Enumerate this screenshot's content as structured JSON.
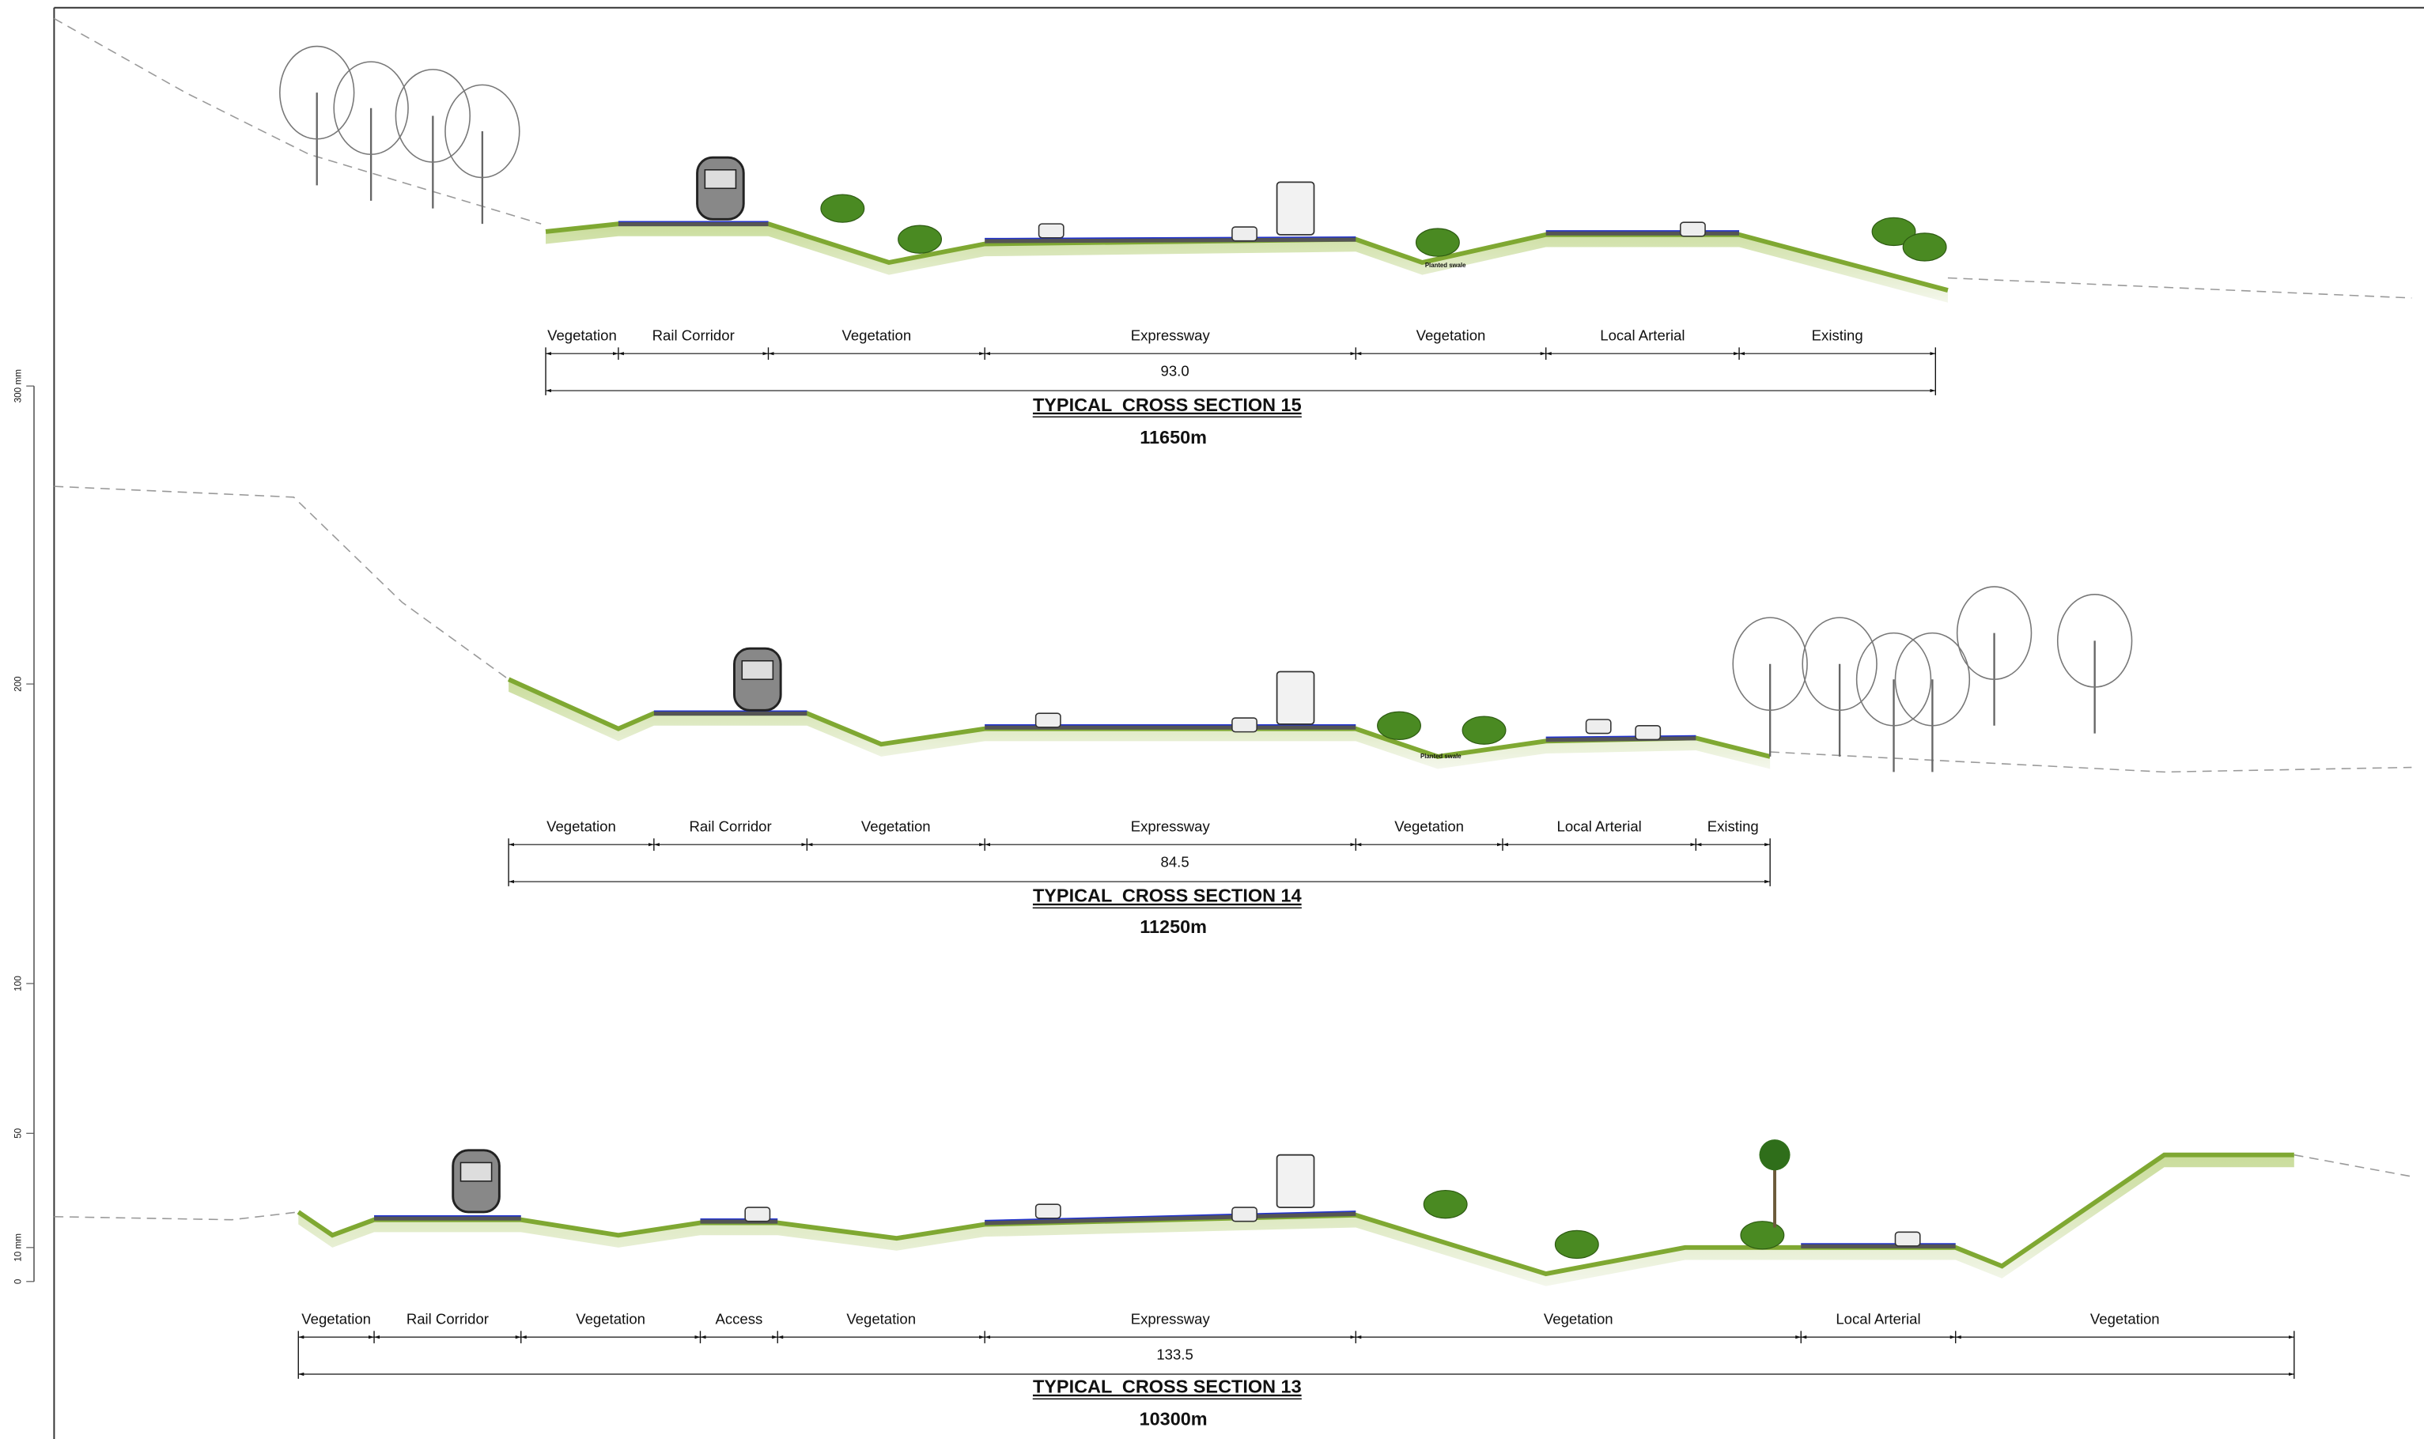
{
  "sections": [
    {
      "title": "TYPICAL  CROSS SECTION 15",
      "chainage": "11650m",
      "total_width": "93.0",
      "segments": [
        "Vegetation",
        "Rail Corridor",
        "Vegetation",
        "Expressway",
        "Vegetation",
        "Local Arterial",
        "Existing"
      ],
      "annotation": "Planted swale"
    },
    {
      "title": "TYPICAL  CROSS SECTION 14",
      "chainage": "11250m",
      "total_width": "84.5",
      "segments": [
        "Vegetation",
        "Rail Corridor",
        "Vegetation",
        "Expressway",
        "Vegetation",
        "Local Arterial",
        "Existing"
      ],
      "annotation": "Planted swale"
    },
    {
      "title": "TYPICAL  CROSS SECTION 13",
      "chainage": "10300m",
      "total_width": "133.5",
      "segments": [
        "Vegetation",
        "Rail Corridor",
        "Vegetation",
        "Access",
        "Vegetation",
        "Expressway",
        "Vegetation",
        "Local Arterial",
        "Vegetation"
      ]
    }
  ],
  "scale_bar": {
    "labels": [
      "300 mm",
      "200",
      "100",
      "50",
      "10 mm",
      "0"
    ]
  }
}
